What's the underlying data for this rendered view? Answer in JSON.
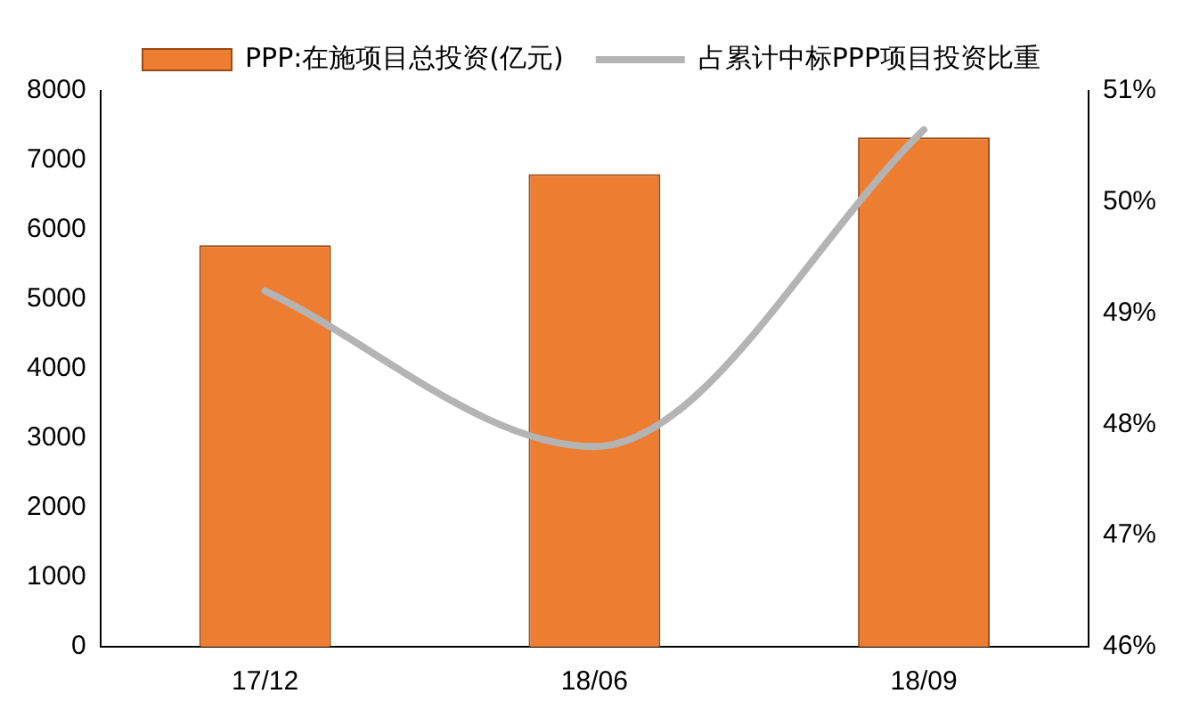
{
  "chart_data": {
    "type": "bar",
    "categories": [
      "17/12",
      "18/06",
      "18/09"
    ],
    "series": [
      {
        "name": "PPP:在施项目总投资(亿元)",
        "color": "#ed7d31",
        "values": [
          5780,
          6800,
          7330
        ]
      },
      {
        "name": "占累计中标PPP项目投资比重",
        "type": "line",
        "axis": "y2",
        "color": "#b4b4b4",
        "values": [
          49.2,
          47.8,
          50.65
        ]
      }
    ],
    "ylim": [
      0,
      8000
    ],
    "yticks": [
      0,
      1000,
      2000,
      3000,
      4000,
      5000,
      6000,
      7000,
      8000
    ],
    "y2lim": [
      46,
      51
    ],
    "y2ticks": [
      {
        "value": 46,
        "label": "46%"
      },
      {
        "value": 47,
        "label": "47%"
      },
      {
        "value": 48,
        "label": "48%"
      },
      {
        "value": 49,
        "label": "49%"
      },
      {
        "value": 50,
        "label": "50%"
      },
      {
        "value": 51,
        "label": "51%"
      }
    ],
    "grid": false,
    "legend": "top",
    "marker": "none"
  }
}
